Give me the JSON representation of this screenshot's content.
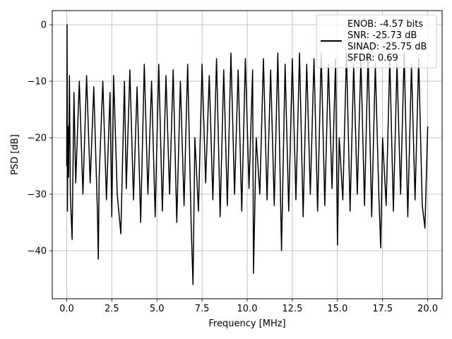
{
  "chart_data": {
    "type": "line",
    "title": "",
    "xlabel": "Frequency [MHz]",
    "ylabel": "PSD [dB]",
    "xlim": [
      -0.8,
      20.8
    ],
    "ylim": [
      -48.5,
      2.5
    ],
    "xticks": [
      0.0,
      2.5,
      5.0,
      7.5,
      10.0,
      12.5,
      15.0,
      17.5,
      20.0
    ],
    "xtick_labels": [
      "0.0",
      "2.5",
      "5.0",
      "7.5",
      "10.0",
      "12.5",
      "15.0",
      "17.5",
      "20.0"
    ],
    "yticks": [
      0,
      -10,
      -20,
      -30,
      -40
    ],
    "ytick_labels": [
      "0",
      "−10",
      "−20",
      "−30",
      "−40"
    ],
    "grid": true,
    "legend_placement": "top-right",
    "line_color": "#000000",
    "series": [
      {
        "x": [
          0.0,
          0.02,
          0.04,
          0.06,
          0.1,
          0.15,
          0.2,
          0.3,
          0.4,
          0.5,
          0.7,
          0.9,
          1.1,
          1.3,
          1.5,
          1.7,
          1.75,
          1.8,
          2.0,
          2.2,
          2.4,
          2.5,
          2.6,
          2.8,
          3.0,
          3.2,
          3.3,
          3.5,
          3.7,
          3.9,
          4.1,
          4.3,
          4.5,
          4.7,
          4.9,
          5.1,
          5.3,
          5.5,
          5.7,
          5.9,
          6.1,
          6.3,
          6.5,
          6.7,
          6.9,
          7.0,
          7.1,
          7.3,
          7.5,
          7.7,
          7.9,
          8.1,
          8.3,
          8.5,
          8.7,
          8.9,
          9.1,
          9.3,
          9.5,
          9.7,
          9.9,
          10.1,
          10.3,
          10.35,
          10.5,
          10.7,
          10.9,
          11.1,
          11.3,
          11.5,
          11.7,
          11.9,
          12.1,
          12.3,
          12.5,
          12.7,
          12.9,
          13.1,
          13.3,
          13.5,
          13.7,
          13.9,
          14.1,
          14.3,
          14.5,
          14.7,
          14.9,
          15.0,
          15.1,
          15.3,
          15.5,
          15.7,
          15.9,
          16.1,
          16.3,
          16.5,
          16.7,
          16.9,
          17.1,
          17.3,
          17.4,
          17.5,
          17.7,
          17.9,
          18.1,
          18.3,
          18.5,
          18.7,
          18.9,
          19.1,
          19.3,
          19.5,
          19.7,
          19.85,
          20.0
        ],
        "y": [
          -25,
          0,
          -33,
          -18,
          -27,
          -9,
          -30,
          -38,
          -12,
          -28,
          -10,
          -30,
          -9,
          -28,
          -11,
          -33,
          -41.5,
          -27,
          -10,
          -31,
          -12,
          -34,
          -9,
          -30,
          -37,
          -10,
          -29,
          -8,
          -31,
          -11,
          -35,
          -7,
          -30,
          -10,
          -34,
          -7,
          -33,
          -9,
          -30,
          -8,
          -35,
          -10,
          -32,
          -7,
          -36,
          -46,
          -20,
          -33,
          -7,
          -28,
          -9,
          -31,
          -6,
          -34,
          -8,
          -32,
          -5,
          -30,
          -8,
          -33,
          -6,
          -29,
          -8,
          -44,
          -20,
          -30,
          -6,
          -31,
          -8,
          -32,
          -5,
          -40,
          -7,
          -33,
          -6,
          -31,
          -5,
          -34,
          -7,
          -30,
          -6,
          -33,
          -5,
          -32,
          -7,
          -29,
          -6,
          -39,
          -20,
          -31,
          -5,
          -33,
          -7,
          -30,
          -6,
          -32,
          -5,
          -34,
          -7,
          -31,
          -39.5,
          -20,
          -32,
          -6,
          -33,
          -7,
          -30,
          -5,
          -34,
          -7,
          -31,
          -6,
          -32,
          -36,
          -18
        ]
      }
    ],
    "legend": {
      "lines": [
        "ENOB: -4.57 bits",
        "SNR: -25.73 dB",
        "SINAD: -25.75 dB",
        "SFDR: 0.69"
      ]
    }
  }
}
